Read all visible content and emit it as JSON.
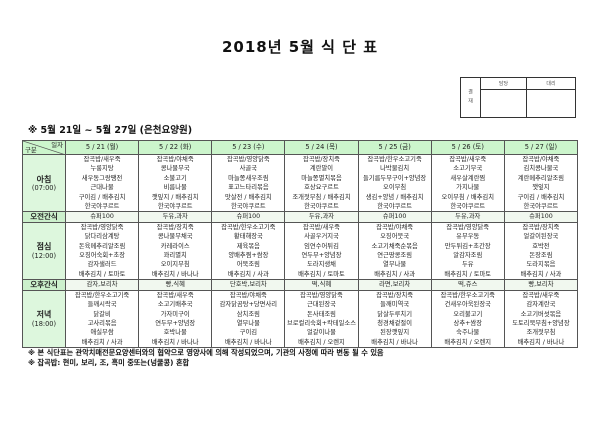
{
  "title": "2018년 5월 식 단 표",
  "approval": {
    "label": "결재",
    "cols": [
      "담당",
      "대리"
    ]
  },
  "subtitle": "※ 5월 21일 ~ 5월 27일 (은천요양원)",
  "header": {
    "corner_top": "일자",
    "corner_bottom": "구분",
    "days": [
      "5 / 21 (월)",
      "5 / 22 (화)",
      "5 / 23 (수)",
      "5 / 24 (목)",
      "5 / 25 (금)",
      "5 / 26 (토)",
      "5 / 27 (일)"
    ]
  },
  "rows": {
    "breakfast": {
      "label": "아침",
      "time": "(07:00)",
      "cells": [
        [
          "잡곡밥/새우죽",
          "누룽지탕",
          "새우동그랑땡전",
          "근대나물",
          "구이김 / 배추김치",
          "한국야쿠르트"
        ],
        [
          "잡곡밥/야채죽",
          "콩나물무국",
          "소불고기",
          "비름나물",
          "깻잎지 / 배추김치",
          "한국야쿠르트"
        ],
        [
          "잡곡밥/영양닭죽",
          "사골국",
          "마늘쫑새우조림",
          "표고느타리볶음",
          "맛살전 / 배추김치",
          "한국야쿠르트"
        ],
        [
          "잡곡밥/장치죽",
          "계란말이",
          "마늘쫑멸치볶음",
          "호상요구르트",
          "조개젓무침 / 배추김치",
          "한국야쿠르트"
        ],
        [
          "잡곡밥/한우소고기죽",
          "나박물김치",
          "들기름두부구이+양념장",
          "오이무침",
          "생김+양념 / 배추김치",
          "한국야쿠르트"
        ],
        [
          "잡곡밥/새우죽",
          "소고기무국",
          "새우살계란찜",
          "가지나물",
          "오이무침 / 배추김치",
          "한국야쿠르트"
        ],
        [
          "잡곡밥/야채죽",
          "김치콩나물국",
          "계란메추리알조림",
          "깻잎지",
          "구이김 / 배추김치",
          "한국야쿠르트"
        ]
      ]
    },
    "am_snack": {
      "label": "오전간식",
      "cells": [
        "슈퍼100",
        "두유,과자",
        "슈퍼100",
        "두유,과자",
        "슈퍼100",
        "두유,과자",
        "슈퍼100"
      ]
    },
    "lunch": {
      "label": "점심",
      "time": "(12:00)",
      "cells": [
        [
          "잡곡밥/영양닭죽",
          "닭다리삼계탕",
          "돈육메추리알조림",
          "오징어숙회+초장",
          "감자샐러드",
          "배추김치 / 토마토"
        ],
        [
          "잡곡밥/장치죽",
          "콩나물무채국",
          "카레라이스",
          "꽈리멸치",
          "오이지무침",
          "배추김치 / 바나나"
        ],
        [
          "잡곡밥/한우소고기죽",
          "황태해장국",
          "제육볶음",
          "양배추찜+쌈장",
          "어묵조림",
          "배추김치 / 사과"
        ],
        [
          "잡곡밥/새우죽",
          "사골우거지국",
          "임연수어튀김",
          "연두부+양념장",
          "도라지생채",
          "배추김치 / 토마토"
        ],
        [
          "잡곡밥/야채죽",
          "오징어뭇국",
          "소고기채죽순볶음",
          "연근땅콩조림",
          "열무나물",
          "배추김치 / 사과"
        ],
        [
          "잡곡밥/영양닭죽",
          "유부우동",
          "만두튀김+초간장",
          "알감자조림",
          "두유",
          "배추김치 / 토마토"
        ],
        [
          "잡곡밥/장치죽",
          "얼갈이된장국",
          "호박전",
          "돈장조림",
          "도라지볶음",
          "배추김치 / 사과"
        ]
      ]
    },
    "pm_snack": {
      "label": "오후간식",
      "cells": [
        "감자,보리차",
        "빵,식혜",
        "단호박,보리차",
        "떡,식혜",
        "라면,보리차",
        "떡,쥬스",
        "빵,보리차"
      ]
    },
    "dinner": {
      "label": "저녁",
      "time": "(18:00)",
      "cells": [
        [
          "잡곡밥/한우소고기죽",
          "들깨시락국",
          "닭갈비",
          "고사리볶음",
          "애실무쌈",
          "배추김치 / 사과"
        ],
        [
          "잡곡밥/새우죽",
          "소고기배추국",
          "가자미구이",
          "연두부+양념장",
          "호박나물",
          "배추김치 / 바나나"
        ],
        [
          "잡곡밥/야채죽",
          "감자닭곰탕+당면사리",
          "삼치조림",
          "열무나물",
          "구이김",
          "배추김치 / 바나나"
        ],
        [
          "잡곡밥/영양닭죽",
          "근대된장국",
          "돈사태조림",
          "브로컬리숙회+칵테일소스",
          "얼갈이나물",
          "배추김치 / 오렌지"
        ],
        [
          "잡곡밥/장치죽",
          "들깨미역국",
          "닭살두루치기",
          "청경채겉절이",
          "된장깻잎지",
          "배추김치 / 바나나"
        ],
        [
          "잡곡밥/한우소고기죽",
          "건새우아욱된장국",
          "오리불고기",
          "상추+쌈장",
          "숙주나물",
          "배추김치 / 오렌지"
        ],
        [
          "잡곡밥/새우죽",
          "감자계란국",
          "소고기버섯볶음",
          "도토리묵무침+양념장",
          "조개젓무침",
          "배추김치 / 바나나"
        ]
      ]
    }
  },
  "notes": [
    "※ 본 식단표는 관악치매전문요양센터와의 협약으로 영양사에 의해 작성되었으며, 기관의 사정에 따라 변동 될 수 있음",
    "※ 잡곡밥: 현미, 보리, 조, 흑미 중또는(넝쿨콩) 혼합"
  ],
  "colors": {
    "header_bg": "#ccf5cc",
    "label_bg": "#ddf7dd"
  }
}
